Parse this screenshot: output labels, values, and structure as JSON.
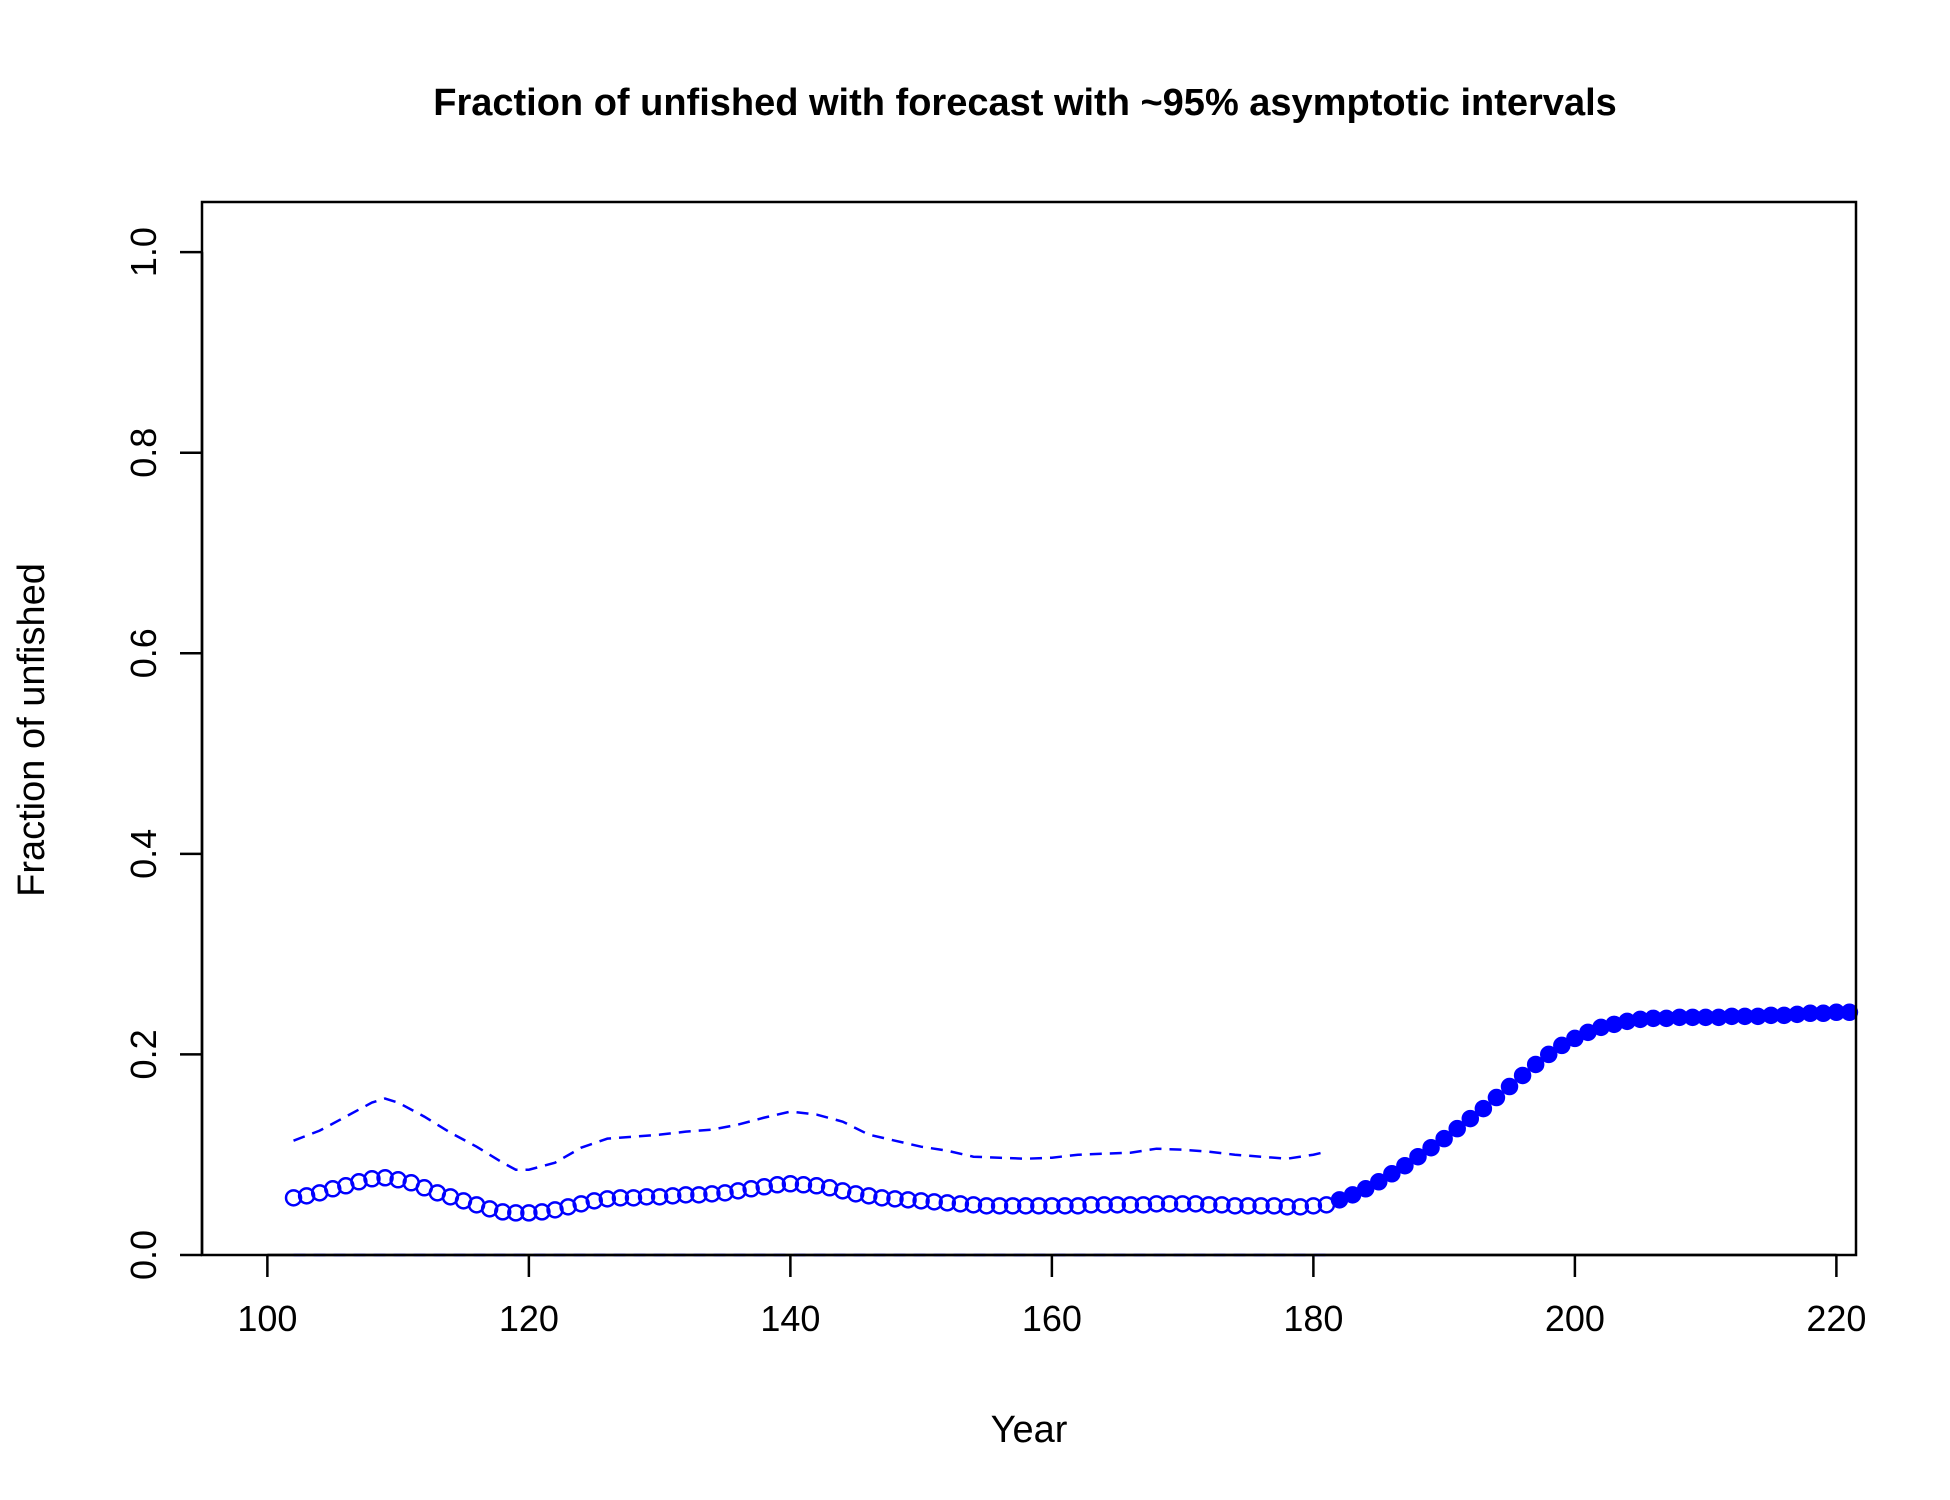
{
  "chart_data": {
    "type": "line",
    "title": "Fraction of unfished with forecast with ~95% asymptotic intervals",
    "xlabel": "Year",
    "ylabel": "Fraction of unfished",
    "xlim": [
      95,
      221.5
    ],
    "ylim": [
      0,
      1.05
    ],
    "xticks": [
      100,
      120,
      140,
      160,
      180,
      200,
      220
    ],
    "yticks": [
      0.0,
      0.2,
      0.4,
      0.6,
      0.8,
      1.0
    ],
    "xtick_labels": [
      "100",
      "120",
      "140",
      "160",
      "180",
      "200",
      "220"
    ],
    "ytick_labels": [
      "0.0",
      "0.2",
      "0.4",
      "0.6",
      "0.8",
      "1.0"
    ],
    "grid": false,
    "colors": {
      "series": "#0000ff",
      "axis": "#000000"
    },
    "series": [
      {
        "style": "open-circles",
        "x": [
          102,
          103,
          104,
          105,
          106,
          107,
          108,
          109,
          110,
          111,
          112,
          113,
          114,
          115,
          116,
          117,
          118,
          119,
          120,
          121,
          122,
          123,
          124,
          125,
          126,
          127,
          128,
          129,
          130,
          131,
          132,
          133,
          134,
          135,
          136,
          137,
          138,
          139,
          140,
          141,
          142,
          143,
          144,
          145,
          146,
          147,
          148,
          149,
          150,
          151,
          152,
          153,
          154,
          155,
          156,
          157,
          158,
          159,
          160,
          161,
          162,
          163,
          164,
          165,
          166,
          167,
          168,
          169,
          170,
          171,
          172,
          173,
          174,
          175,
          176,
          177,
          178,
          179,
          180,
          181
        ],
        "y": [
          0.057,
          0.059,
          0.062,
          0.066,
          0.069,
          0.073,
          0.076,
          0.077,
          0.075,
          0.072,
          0.067,
          0.062,
          0.058,
          0.054,
          0.05,
          0.046,
          0.043,
          0.042,
          0.042,
          0.043,
          0.045,
          0.048,
          0.051,
          0.054,
          0.056,
          0.057,
          0.057,
          0.058,
          0.058,
          0.059,
          0.06,
          0.06,
          0.061,
          0.062,
          0.064,
          0.066,
          0.068,
          0.07,
          0.071,
          0.07,
          0.069,
          0.067,
          0.064,
          0.061,
          0.059,
          0.057,
          0.056,
          0.055,
          0.054,
          0.053,
          0.052,
          0.051,
          0.05,
          0.049,
          0.049,
          0.049,
          0.049,
          0.049,
          0.049,
          0.049,
          0.049,
          0.05,
          0.05,
          0.05,
          0.05,
          0.05,
          0.051,
          0.051,
          0.051,
          0.051,
          0.05,
          0.05,
          0.049,
          0.049,
          0.049,
          0.049,
          0.048,
          0.048,
          0.049,
          0.05
        ]
      },
      {
        "style": "filled-circles",
        "x": [
          182,
          183,
          184,
          185,
          186,
          187,
          188,
          189,
          190,
          191,
          192,
          193,
          194,
          195,
          196,
          197,
          198,
          199,
          200,
          201,
          202,
          203,
          204,
          205,
          206,
          207,
          208,
          209,
          210,
          211,
          212,
          213,
          214,
          215,
          216,
          217,
          218,
          219,
          220,
          221
        ],
        "y": [
          0.055,
          0.06,
          0.066,
          0.073,
          0.081,
          0.089,
          0.098,
          0.107,
          0.116,
          0.126,
          0.136,
          0.146,
          0.157,
          0.168,
          0.179,
          0.19,
          0.2,
          0.209,
          0.216,
          0.222,
          0.227,
          0.23,
          0.233,
          0.235,
          0.236,
          0.236,
          0.237,
          0.237,
          0.237,
          0.237,
          0.238,
          0.238,
          0.238,
          0.239,
          0.239,
          0.24,
          0.241,
          0.241,
          0.242,
          0.242
        ]
      },
      {
        "style": "dashed",
        "x": [
          102,
          104,
          106,
          108,
          109,
          110,
          112,
          114,
          116,
          118,
          119,
          120,
          122,
          124,
          126,
          128,
          130,
          132,
          134,
          136,
          138,
          140,
          142,
          144,
          146,
          148,
          150,
          152,
          154,
          156,
          158,
          160,
          162,
          164,
          166,
          168,
          170,
          172,
          174,
          176,
          178,
          180,
          181
        ],
        "y": [
          0.114,
          0.124,
          0.138,
          0.152,
          0.156,
          0.152,
          0.138,
          0.122,
          0.108,
          0.092,
          0.085,
          0.085,
          0.092,
          0.107,
          0.116,
          0.118,
          0.12,
          0.123,
          0.125,
          0.13,
          0.137,
          0.143,
          0.14,
          0.133,
          0.12,
          0.114,
          0.108,
          0.104,
          0.098,
          0.097,
          0.096,
          0.097,
          0.1,
          0.101,
          0.102,
          0.106,
          0.105,
          0.103,
          0.1,
          0.098,
          0.096,
          0.1,
          0.103
        ]
      },
      {
        "style": "dashed",
        "x": [
          102,
          181
        ],
        "y": [
          0.0,
          0.0
        ]
      }
    ]
  }
}
